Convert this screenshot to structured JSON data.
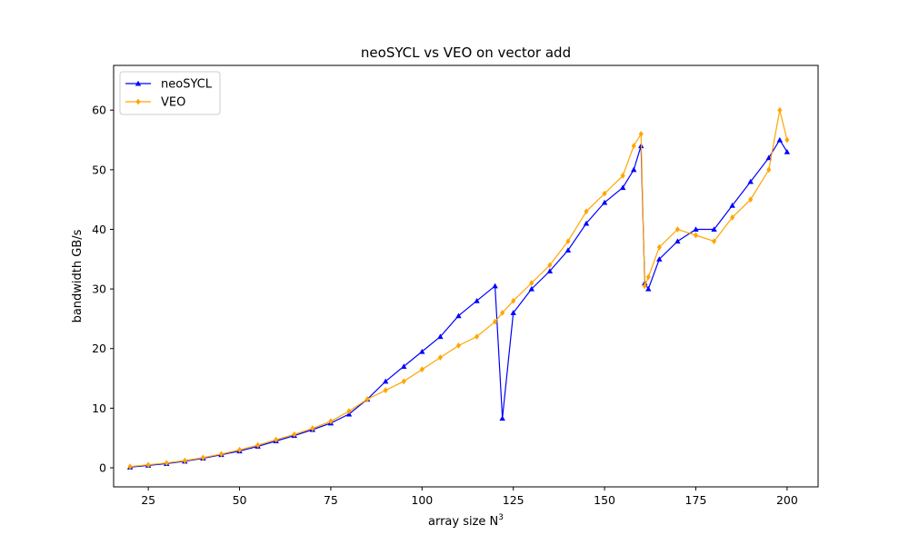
{
  "chart_data": {
    "type": "line",
    "title": "neoSYCL vs VEO on vector add",
    "xlabel": "array size N",
    "xlabel_superscript": "3",
    "ylabel": "bandwidth GB/s",
    "xlim": [
      15.5,
      208.5
    ],
    "ylim": [
      -3.2,
      67.5
    ],
    "xticks": [
      25,
      50,
      75,
      100,
      125,
      150,
      175,
      200
    ],
    "yticks": [
      0,
      10,
      20,
      30,
      40,
      50,
      60
    ],
    "grid": false,
    "legend_position": "top-left",
    "x": [
      20,
      25,
      30,
      35,
      40,
      45,
      50,
      55,
      60,
      65,
      70,
      75,
      80,
      85,
      90,
      95,
      100,
      105,
      110,
      115,
      120,
      122,
      125,
      130,
      135,
      140,
      145,
      150,
      155,
      158,
      160,
      161,
      162,
      165,
      170,
      175,
      180,
      185,
      190,
      195,
      198,
      200
    ],
    "series": [
      {
        "name": "neoSYCL",
        "color": "#0000ff",
        "marker": "triangle",
        "values": [
          0.1,
          0.4,
          0.7,
          1.1,
          1.6,
          2.2,
          2.8,
          3.6,
          4.5,
          5.4,
          6.4,
          7.5,
          9.0,
          11.5,
          14.5,
          17.0,
          19.5,
          22.0,
          25.5,
          28.0,
          30.5,
          8.3,
          26.0,
          30.0,
          33.0,
          36.5,
          41.0,
          44.5,
          47.0,
          50.0,
          54.0,
          31.0,
          30.0,
          35.0,
          38.0,
          40.0,
          40.0,
          44.0,
          48.0,
          52.0,
          55.0,
          53.0
        ]
      },
      {
        "name": "VEO",
        "color": "#ffa500",
        "marker": "diamond",
        "values": [
          0.2,
          0.5,
          0.8,
          1.2,
          1.7,
          2.3,
          3.0,
          3.8,
          4.7,
          5.6,
          6.6,
          7.8,
          9.5,
          11.5,
          13.0,
          14.5,
          16.5,
          18.5,
          20.5,
          22.0,
          24.5,
          26.0,
          28.0,
          31.0,
          34.0,
          38.0,
          43.0,
          46.0,
          49.0,
          54.0,
          56.0,
          30.5,
          32.0,
          37.0,
          40.0,
          39.0,
          38.0,
          42.0,
          45.0,
          50.0,
          60.0,
          55.0
        ]
      }
    ]
  }
}
